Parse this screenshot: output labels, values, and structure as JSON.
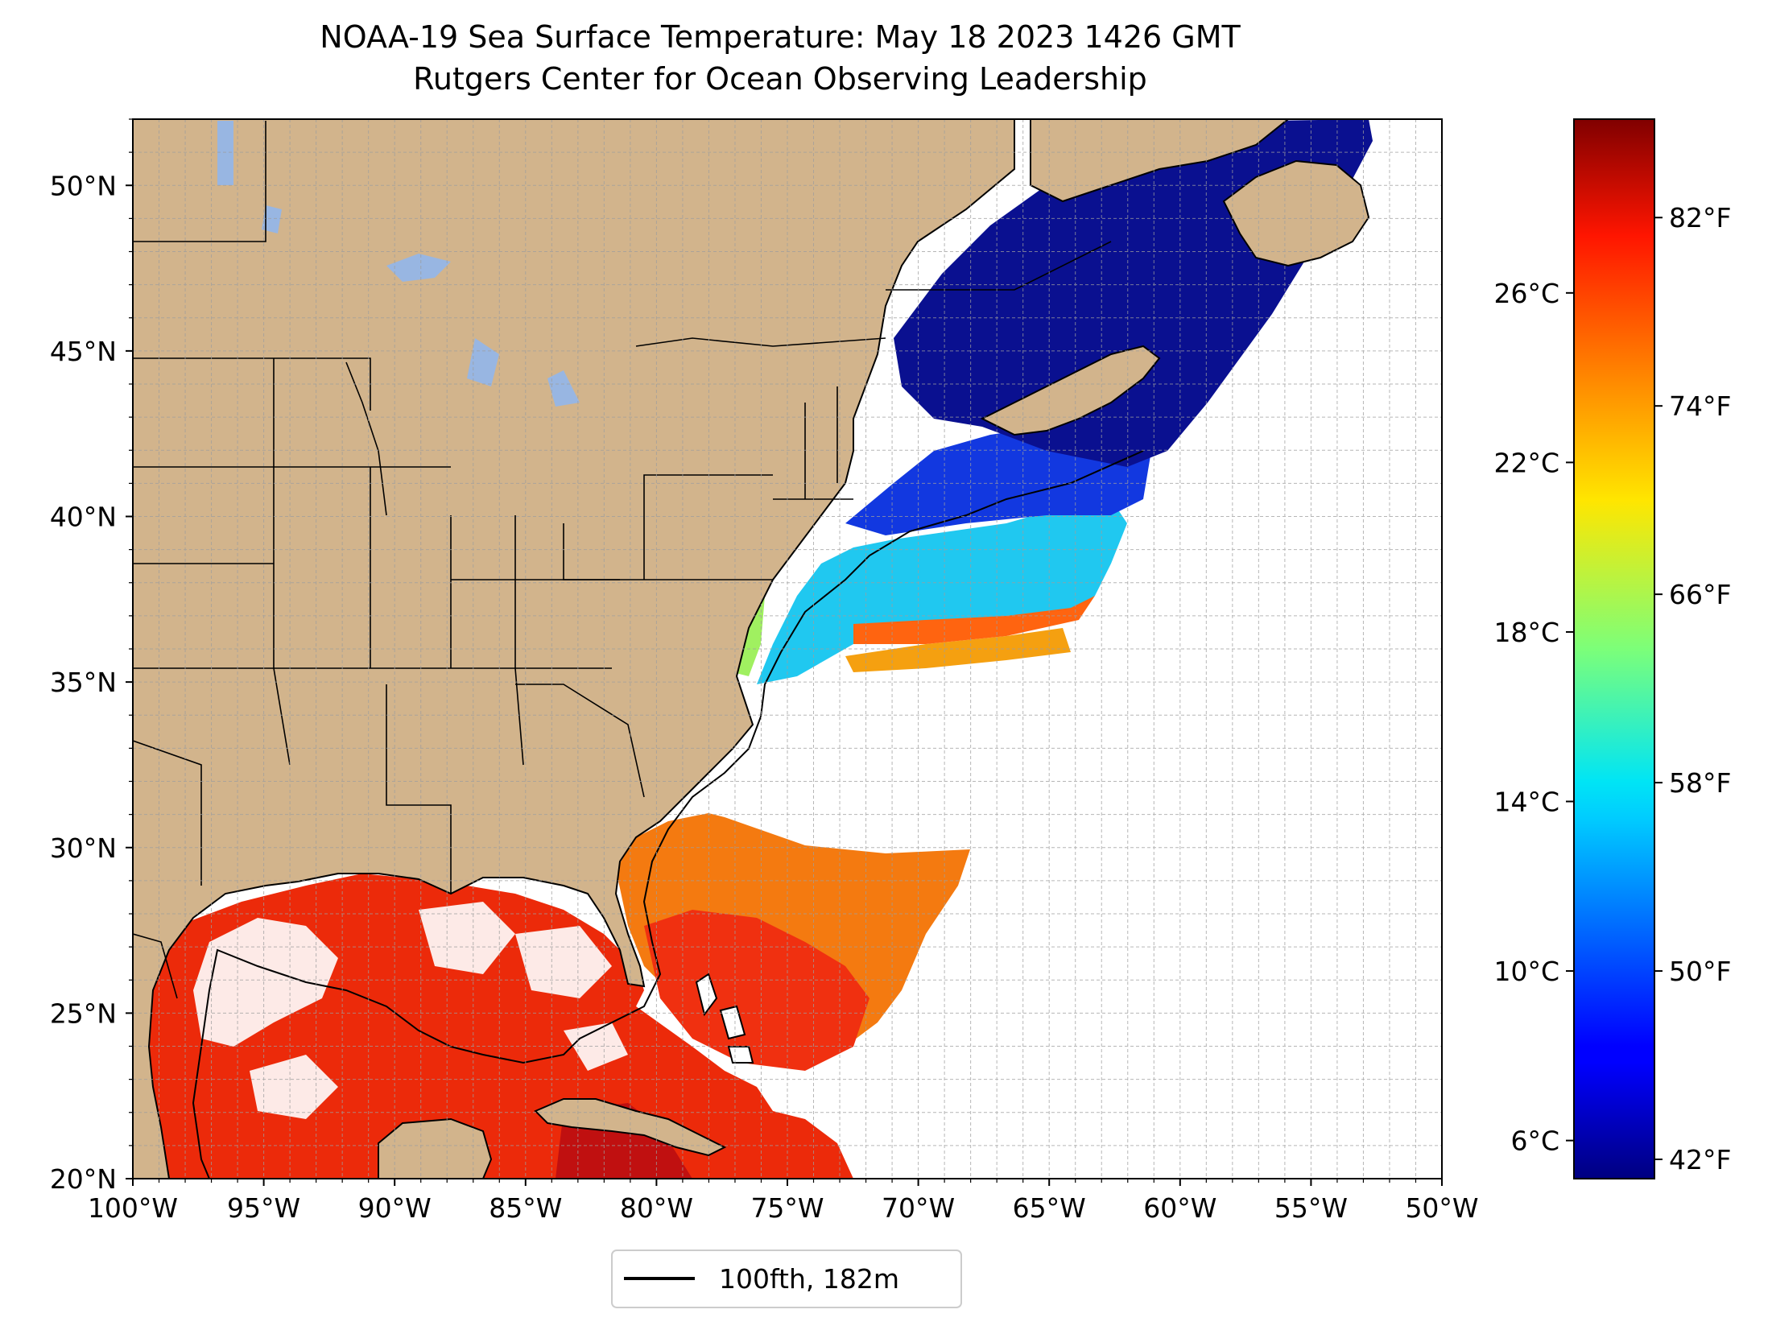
{
  "title": "NOAA-19 Sea Surface Temperature: May 18 2023 1426 GMT",
  "subtitle": "Rutgers Center for Ocean Observing Leadership",
  "map": {
    "lon_range": [
      -100,
      -50
    ],
    "lat_range": [
      20,
      52
    ],
    "lon_ticks": [
      {
        "value": -100,
        "label": "100°W"
      },
      {
        "value": -95,
        "label": "95°W"
      },
      {
        "value": -90,
        "label": "90°W"
      },
      {
        "value": -85,
        "label": "85°W"
      },
      {
        "value": -80,
        "label": "80°W"
      },
      {
        "value": -75,
        "label": "75°W"
      },
      {
        "value": -70,
        "label": "70°W"
      },
      {
        "value": -65,
        "label": "65°W"
      },
      {
        "value": -60,
        "label": "60°W"
      },
      {
        "value": -55,
        "label": "55°W"
      },
      {
        "value": -50,
        "label": "50°W"
      }
    ],
    "lat_ticks": [
      {
        "value": 20,
        "label": "20°N"
      },
      {
        "value": 25,
        "label": "25°N"
      },
      {
        "value": 30,
        "label": "30°N"
      },
      {
        "value": 35,
        "label": "35°N"
      },
      {
        "value": 40,
        "label": "40°N"
      },
      {
        "value": 45,
        "label": "45°N"
      },
      {
        "value": 50,
        "label": "50°N"
      }
    ],
    "grid": "dashed 1-degree",
    "colors": {
      "land": "#d2b48c",
      "lakes_no_data": "#98b6e2",
      "ocean_no_data": "#ffffff",
      "coast": "#000000"
    }
  },
  "legend": {
    "label": "100fth, 182m",
    "placement": "bottom-center"
  },
  "colorbar": {
    "colormap": "jet",
    "celsius_range": [
      5.1,
      30.1
    ],
    "celsius_ticks": [
      {
        "value": 6,
        "label": "6°C"
      },
      {
        "value": 10,
        "label": "10°C"
      },
      {
        "value": 14,
        "label": "14°C"
      },
      {
        "value": 18,
        "label": "18°C"
      },
      {
        "value": 22,
        "label": "22°C"
      },
      {
        "value": 26,
        "label": "26°C"
      }
    ],
    "fahrenheit_ticks": [
      {
        "value": 42,
        "label": "42°F"
      },
      {
        "value": 50,
        "label": "50°F"
      },
      {
        "value": 58,
        "label": "58°F"
      },
      {
        "value": 66,
        "label": "66°F"
      },
      {
        "value": 74,
        "label": "74°F"
      },
      {
        "value": 82,
        "label": "82°F"
      }
    ]
  }
}
